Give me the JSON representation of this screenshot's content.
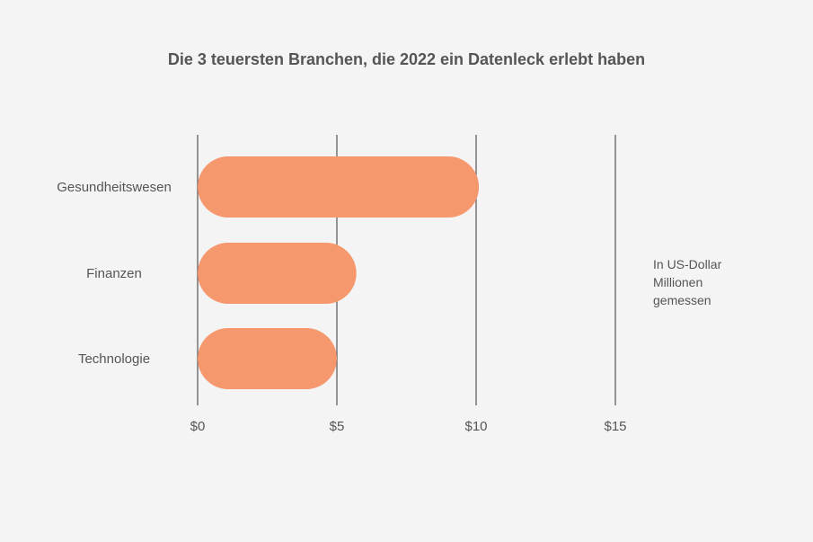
{
  "chart_data": {
    "type": "bar",
    "orientation": "horizontal",
    "title": "Die 3 teuersten Branchen, die 2022 ein Datenleck erlebt haben",
    "categories": [
      "Gesundheitswesen",
      "Finanzen",
      "Technologie"
    ],
    "values": [
      10.1,
      5.7,
      5.0
    ],
    "xlim": [
      0,
      15
    ],
    "xticks": [
      0,
      5,
      10,
      15
    ],
    "xtick_labels": [
      "$0",
      "$5",
      "$10",
      "$15"
    ],
    "grid": "vertical",
    "bar_color": "#f6986e",
    "gridline_color": "#555555",
    "bar_shape": "rounded",
    "annotation": [
      "In US-Dollar",
      "Millionen",
      "gemessen"
    ],
    "legend": "none"
  }
}
